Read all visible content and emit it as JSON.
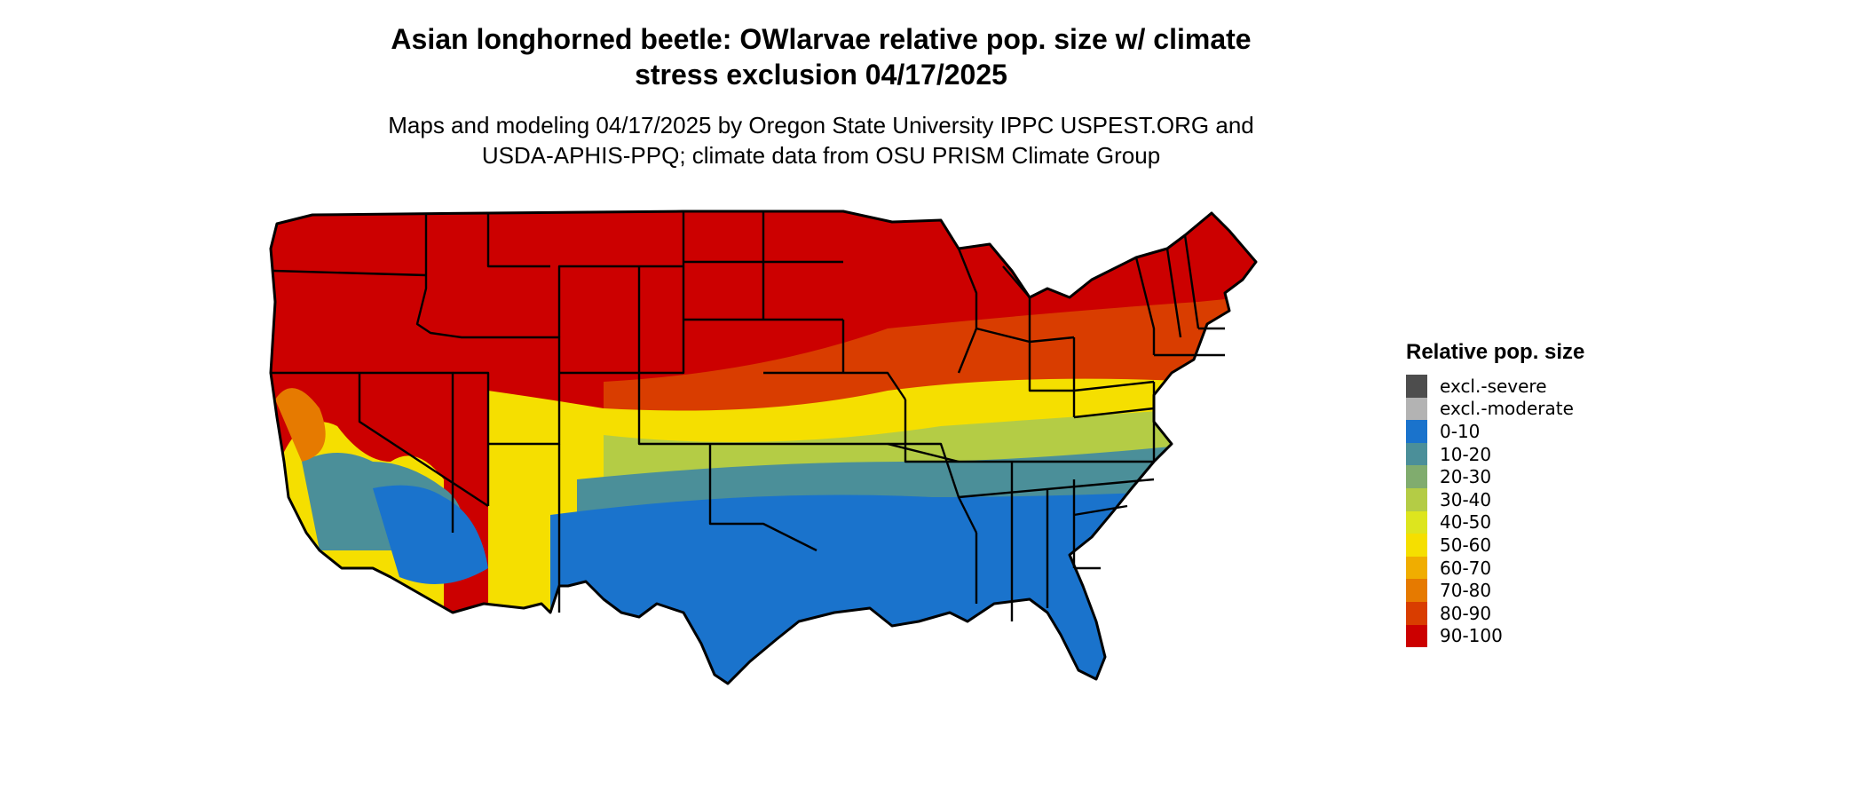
{
  "title": "Asian longhorned beetle: OWlarvae relative pop. size w/ climate\nstress exclusion 04/17/2025",
  "title_lines": [
    "Asian longhorned beetle: OWlarvae relative pop. size w/ climate",
    "stress exclusion 04/17/2025"
  ],
  "subtitle_lines": [
    "Maps and modeling 04/17/2025 by Oregon State University IPPC USPEST.ORG and",
    "USDA-APHIS-PPQ; climate data from OSU PRISM Climate Group"
  ],
  "legend": {
    "title": "Relative pop. size",
    "items": [
      {
        "label": "excl.-severe",
        "color": "#4d4d4d"
      },
      {
        "label": "excl.-moderate",
        "color": "#b3b3b3"
      },
      {
        "label": "0-10",
        "color": "#1a73cc"
      },
      {
        "label": "10-20",
        "color": "#4b8f99"
      },
      {
        "label": "20-30",
        "color": "#80ac6e"
      },
      {
        "label": "30-40",
        "color": "#b4cc45"
      },
      {
        "label": "40-50",
        "color": "#dde51e"
      },
      {
        "label": "50-60",
        "color": "#f5df00"
      },
      {
        "label": "60-70",
        "color": "#f0ad00"
      },
      {
        "label": "70-80",
        "color": "#e67a00"
      },
      {
        "label": "80-90",
        "color": "#d93d00"
      },
      {
        "label": "90-100",
        "color": "#cc0000"
      }
    ]
  }
}
